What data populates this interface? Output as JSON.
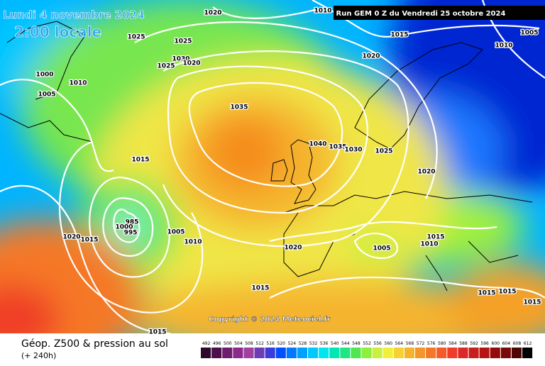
{
  "header": {
    "date": "Lundi 4 novembre 2024",
    "time": "2:00 locale",
    "run": "Run GEM 0 Z du Vendredi 25 octobre 2024"
  },
  "footer": {
    "title": "Géop. Z500 & pression au sol",
    "range": "(+ 240h)"
  },
  "copyright": "Copyright © 2024 Meteociel.fr",
  "isobars": [
    1020,
    1010,
    1025,
    1025,
    1015,
    1005,
    1010,
    1030,
    1020,
    1025,
    1020,
    1000,
    1010,
    1005,
    1035,
    1040,
    1035,
    1030,
    1025,
    1015,
    1020,
    985,
    1000,
    995,
    1005,
    1020,
    1015,
    1010,
    1015,
    1010,
    1005,
    1020,
    1015,
    1015,
    1015,
    1015,
    1015
  ],
  "scale": {
    "labels": [
      492,
      496,
      500,
      504,
      508,
      512,
      516,
      520,
      524,
      528,
      532,
      536,
      540,
      544,
      548,
      552,
      556,
      560,
      564,
      568,
      572,
      576,
      580,
      584,
      588,
      592,
      596,
      600,
      604,
      608,
      612
    ],
    "colors": [
      "#2d0a2d",
      "#4b0f4b",
      "#6e1e6e",
      "#8c2a8c",
      "#a040a0",
      "#6e3cb4",
      "#3c3cdc",
      "#0050ff",
      "#0078ff",
      "#00a0ff",
      "#00c8ff",
      "#00e6f0",
      "#00e6b4",
      "#1ee682",
      "#50e650",
      "#8cf03c",
      "#c8f03c",
      "#f0f03c",
      "#f5d232",
      "#f5b428",
      "#f59628",
      "#f57828",
      "#f55a28",
      "#f03c28",
      "#dc2828",
      "#c81e1e",
      "#b41414",
      "#960a0a",
      "#780a0a",
      "#500505",
      "#000000"
    ]
  }
}
